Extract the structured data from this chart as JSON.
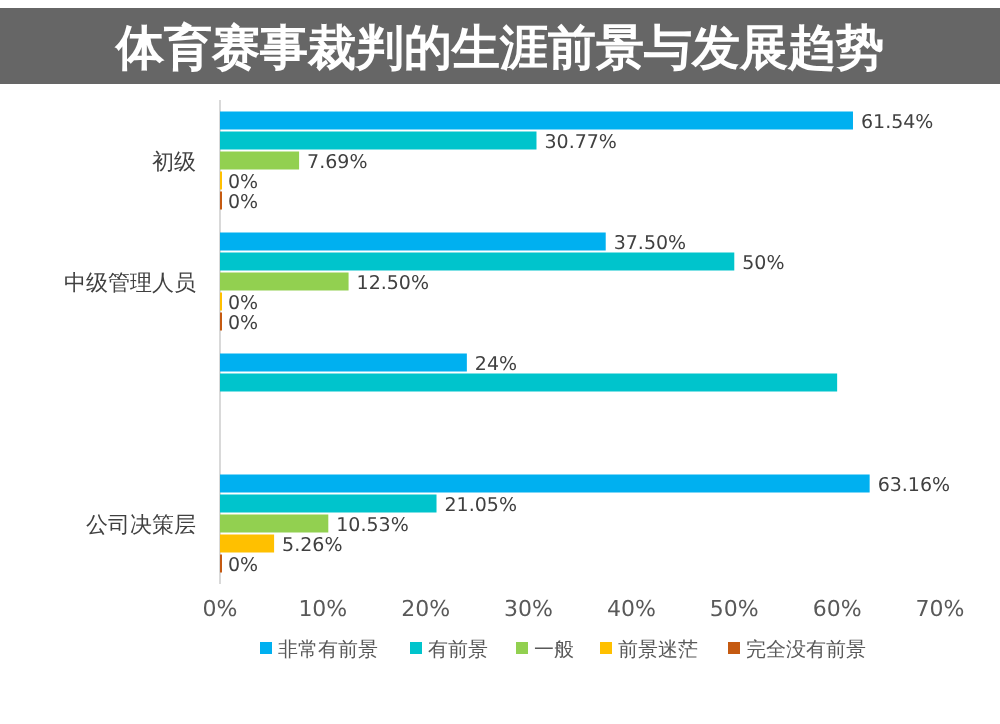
{
  "chart_data": {
    "type": "bar",
    "orientation": "horizontal",
    "title": "体育赛事裁判的生涯前景与发展趋势",
    "categories": [
      "初级",
      "中级管理人员",
      null,
      "公司决策层"
    ],
    "xlim": [
      0,
      70
    ],
    "xticks": [
      {
        "value": 0,
        "label": "0%"
      },
      {
        "value": 10,
        "label": "10%"
      },
      {
        "value": 20,
        "label": "20%"
      },
      {
        "value": 30,
        "label": "30%"
      },
      {
        "value": 40,
        "label": "40%"
      },
      {
        "value": 50,
        "label": "50%"
      },
      {
        "value": 60,
        "label": "60%"
      },
      {
        "value": 70,
        "label": "70%"
      }
    ],
    "grid": false,
    "legend": "bottom",
    "series": [
      {
        "name": "非常有前景",
        "color": "#00b0f0",
        "values": [
          61.54,
          37.5,
          24,
          63.16
        ],
        "value_labels": [
          "61.54%",
          "37.50%",
          "24%",
          "63.16%"
        ]
      },
      {
        "name": "有前景",
        "color": "#00c4cc",
        "values": [
          30.77,
          50,
          60,
          21.05
        ],
        "value_labels": [
          "30.77%",
          "50%",
          null,
          "21.05%"
        ]
      },
      {
        "name": "一般",
        "color": "#92d050",
        "values": [
          7.69,
          12.5,
          null,
          10.53
        ],
        "value_labels": [
          "7.69%",
          "12.50%",
          null,
          "10.53%"
        ]
      },
      {
        "name": "前景迷茫",
        "color": "#ffc000",
        "values": [
          0,
          0,
          null,
          5.26
        ],
        "value_labels": [
          "0%",
          "0%",
          null,
          "5.26%"
        ]
      },
      {
        "name": "完全没有前景",
        "color": "#c55a11",
        "values": [
          0,
          0,
          null,
          0
        ],
        "value_labels": [
          "0%",
          "0%",
          null,
          "0%"
        ]
      }
    ]
  }
}
